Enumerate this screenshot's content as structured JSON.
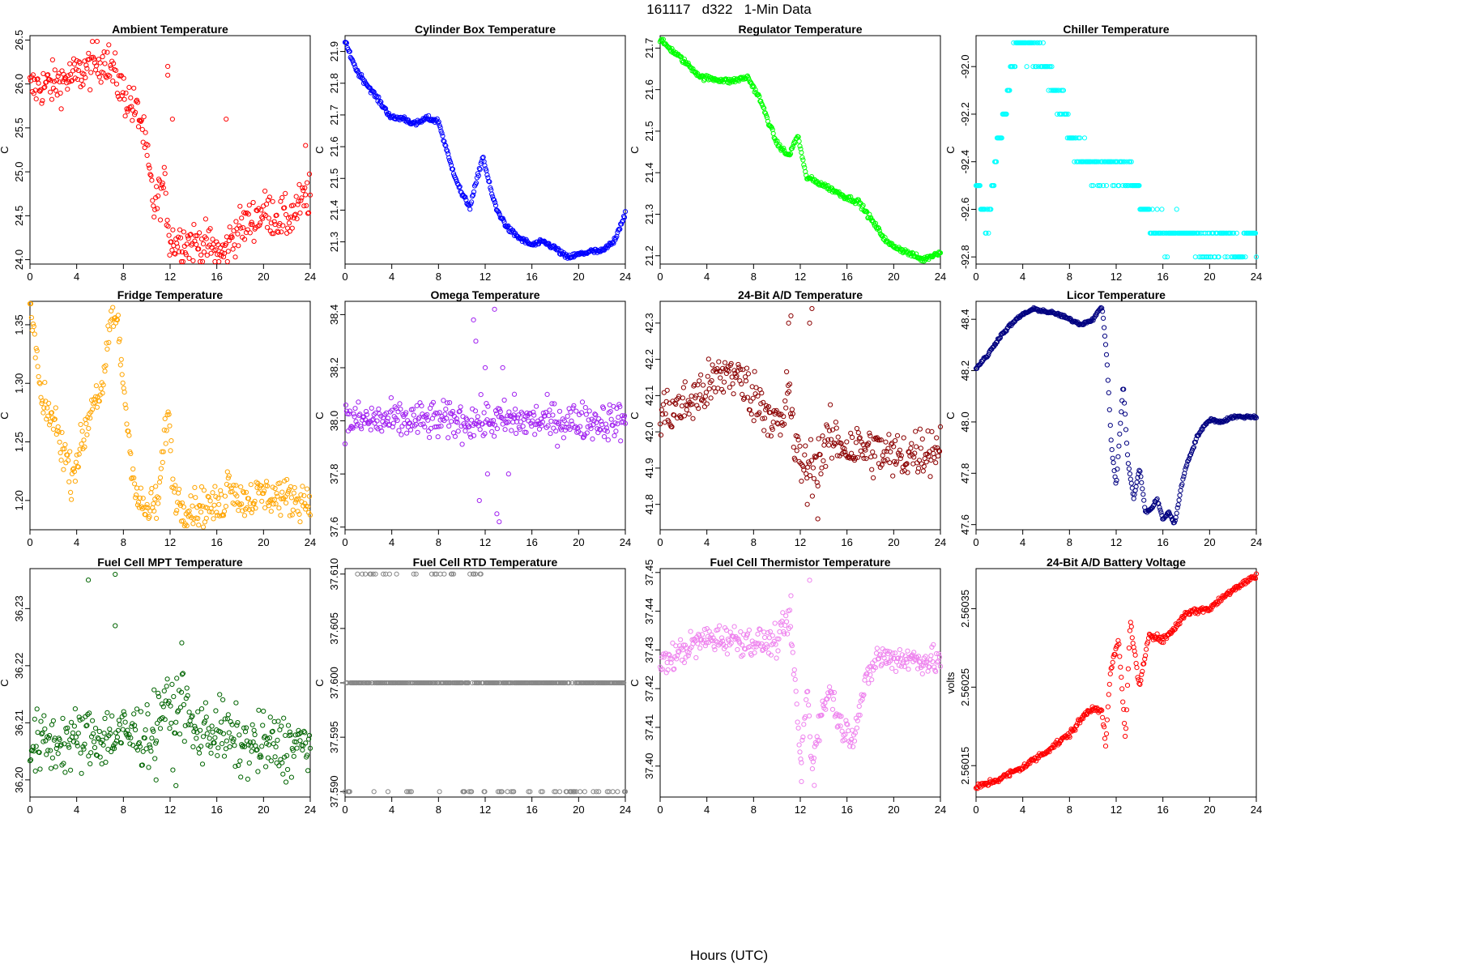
{
  "figure": {
    "title": "161117   d322   1-Min Data",
    "xlabel": "Hours (UTC)"
  },
  "chart_data": [
    {
      "type": "scatter",
      "title": "Ambient Temperature",
      "ylabel": "C",
      "color": "#ff0000",
      "xlim": [
        0,
        24
      ],
      "ylim": [
        23.95,
        26.55
      ],
      "xticks": [
        0,
        4,
        8,
        12,
        16,
        20,
        24
      ],
      "yticks": [
        "24.0",
        "24.5",
        "25.0",
        "25.5",
        "26.0",
        "26.5"
      ],
      "trend": [
        [
          0,
          25.95
        ],
        [
          2,
          26.0
        ],
        [
          4,
          26.1
        ],
        [
          6.5,
          26.3
        ],
        [
          8,
          25.9
        ],
        [
          9.5,
          25.6
        ],
        [
          10.2,
          25.0
        ],
        [
          10.6,
          24.6
        ],
        [
          11.5,
          24.85
        ],
        [
          12,
          24.22
        ],
        [
          14,
          24.2
        ],
        [
          15.5,
          24.15
        ],
        [
          16.5,
          24.05
        ],
        [
          17.5,
          24.3
        ],
        [
          20,
          24.55
        ],
        [
          22,
          24.45
        ],
        [
          24,
          24.75
        ]
      ],
      "noise": 0.12,
      "outliers": [
        [
          11.8,
          26.2
        ],
        [
          11.8,
          26.1
        ],
        [
          16.8,
          25.6
        ],
        [
          12.2,
          25.6
        ],
        [
          23.6,
          25.3
        ]
      ]
    },
    {
      "type": "scatter",
      "title": "Cylinder Box Temperature",
      "ylabel": "C",
      "color": "#0000ff",
      "xlim": [
        0,
        24
      ],
      "ylim": [
        21.23,
        21.95
      ],
      "xticks": [
        0,
        4,
        8,
        12,
        16,
        20,
        24
      ],
      "yticks": [
        "21.3",
        "21.4",
        "21.5",
        "21.6",
        "21.7",
        "21.8",
        "21.9"
      ],
      "trend": [
        [
          0,
          21.93
        ],
        [
          1,
          21.84
        ],
        [
          2,
          21.79
        ],
        [
          3,
          21.74
        ],
        [
          4,
          21.69
        ],
        [
          5,
          21.69
        ],
        [
          6,
          21.67
        ],
        [
          7,
          21.69
        ],
        [
          8,
          21.68
        ],
        [
          9,
          21.55
        ],
        [
          10,
          21.45
        ],
        [
          10.7,
          21.41
        ],
        [
          11.8,
          21.57
        ],
        [
          12.5,
          21.46
        ],
        [
          13,
          21.4
        ],
        [
          14,
          21.34
        ],
        [
          15,
          21.31
        ],
        [
          16,
          21.29
        ],
        [
          17,
          21.3
        ],
        [
          18,
          21.28
        ],
        [
          19,
          21.25
        ],
        [
          20,
          21.26
        ],
        [
          21,
          21.27
        ],
        [
          22,
          21.27
        ],
        [
          23,
          21.3
        ],
        [
          24,
          21.39
        ]
      ],
      "noise": 0.004,
      "outliers": []
    },
    {
      "type": "scatter",
      "title": "Regulator Temperature",
      "ylabel": "C",
      "color": "#00ff00",
      "xlim": [
        0,
        24
      ],
      "ylim": [
        21.18,
        21.73
      ],
      "xticks": [
        0,
        4,
        8,
        12,
        16,
        20,
        24
      ],
      "yticks": [
        "21.2",
        "21.3",
        "21.4",
        "21.5",
        "21.6",
        "21.7"
      ],
      "trend": [
        [
          0,
          21.72
        ],
        [
          2,
          21.67
        ],
        [
          3.5,
          21.63
        ],
        [
          6,
          21.62
        ],
        [
          7.5,
          21.63
        ],
        [
          8.5,
          21.58
        ],
        [
          10,
          21.47
        ],
        [
          11,
          21.44
        ],
        [
          11.8,
          21.49
        ],
        [
          12.5,
          21.39
        ],
        [
          14,
          21.37
        ],
        [
          16,
          21.34
        ],
        [
          17,
          21.33
        ],
        [
          18,
          21.29
        ],
        [
          19.5,
          21.23
        ],
        [
          21,
          21.21
        ],
        [
          22.5,
          21.19
        ],
        [
          24,
          21.21
        ]
      ],
      "noise": 0.003,
      "outliers": []
    },
    {
      "type": "scatter",
      "title": "Chiller Temperature",
      "ylabel": "C",
      "color": "#00ffff",
      "xlim": [
        0,
        24
      ],
      "ylim": [
        -92.83,
        -91.87
      ],
      "xticks": [
        0,
        4,
        8,
        12,
        16,
        20,
        24
      ],
      "yticks": [
        "-92.0",
        "-92.2",
        "-92.4",
        "-92.6",
        "-92.8"
      ],
      "quantum": 0.1,
      "trend": [
        [
          0,
          -92.5
        ],
        [
          1,
          -92.65
        ],
        [
          1.8,
          -92.35
        ],
        [
          2.8,
          -92.1
        ],
        [
          3.5,
          -91.92
        ],
        [
          5,
          -91.92
        ],
        [
          6,
          -92.0
        ],
        [
          7.5,
          -92.2
        ],
        [
          9,
          -92.4
        ],
        [
          13,
          -92.45
        ],
        [
          14.5,
          -92.6
        ],
        [
          15.5,
          -92.7
        ],
        [
          18,
          -92.7
        ],
        [
          19.5,
          -92.75
        ],
        [
          21,
          -92.72
        ],
        [
          22.5,
          -92.78
        ],
        [
          24,
          -92.7
        ]
      ],
      "noise": 0.03,
      "outliers": []
    },
    {
      "type": "scatter",
      "title": "Fridge Temperature",
      "ylabel": "C",
      "color": "#ffa500",
      "xlim": [
        0,
        24
      ],
      "ylim": [
        1.175,
        1.37
      ],
      "xticks": [
        0,
        4,
        8,
        12,
        16,
        20,
        24
      ],
      "yticks": [
        "1.20",
        "1.25",
        "1.30",
        "1.35"
      ],
      "trend": [
        [
          0,
          1.365
        ],
        [
          0.5,
          1.33
        ],
        [
          1,
          1.28
        ],
        [
          2,
          1.27
        ],
        [
          3,
          1.24
        ],
        [
          3.5,
          1.22
        ],
        [
          4.5,
          1.25
        ],
        [
          5.5,
          1.29
        ],
        [
          6.2,
          1.29
        ],
        [
          7,
          1.36
        ],
        [
          7.5,
          1.35
        ],
        [
          8.5,
          1.25
        ],
        [
          9.2,
          1.2
        ],
        [
          10,
          1.19
        ],
        [
          11,
          1.2
        ],
        [
          11.8,
          1.28
        ],
        [
          12.3,
          1.21
        ],
        [
          13,
          1.195
        ],
        [
          16.5,
          1.195
        ],
        [
          17,
          1.22
        ],
        [
          18,
          1.2
        ],
        [
          20,
          1.205
        ],
        [
          24,
          1.2
        ]
      ],
      "noise": 0.008,
      "outliers": []
    },
    {
      "type": "scatter",
      "title": "Omega Temperature",
      "ylabel": "C",
      "color": "#a020f0",
      "xlim": [
        0,
        24
      ],
      "ylim": [
        37.59,
        38.45
      ],
      "xticks": [
        0,
        4,
        8,
        12,
        16,
        20,
        24
      ],
      "yticks": [
        "37.6",
        "37.8",
        "38.0",
        "38.2",
        "38.4"
      ],
      "trend": [
        [
          0,
          38.0
        ],
        [
          10.5,
          38.0
        ],
        [
          24,
          38.0
        ]
      ],
      "noise": 0.035,
      "outliers": [
        [
          11,
          38.38
        ],
        [
          11.2,
          38.3
        ],
        [
          11.5,
          37.7
        ],
        [
          12,
          38.2
        ],
        [
          12.2,
          37.8
        ],
        [
          12.8,
          38.42
        ],
        [
          13,
          37.65
        ],
        [
          13.2,
          37.62
        ],
        [
          13.5,
          38.2
        ],
        [
          14,
          37.8
        ],
        [
          14.5,
          38.1
        ]
      ]
    },
    {
      "type": "scatter",
      "title": "24-Bit A/D Temperature",
      "ylabel": "C",
      "color": "#8b0000",
      "xlim": [
        0,
        24
      ],
      "ylim": [
        41.73,
        42.36
      ],
      "xticks": [
        0,
        4,
        8,
        12,
        16,
        20,
        24
      ],
      "yticks": [
        "41.8",
        "41.9",
        "42.0",
        "42.1",
        "42.2",
        "42.3"
      ],
      "trend": [
        [
          0,
          42.05
        ],
        [
          2,
          42.07
        ],
        [
          4,
          42.12
        ],
        [
          6,
          42.17
        ],
        [
          8,
          42.1
        ],
        [
          9.5,
          42.05
        ],
        [
          10.5,
          42.0
        ],
        [
          11,
          42.15
        ],
        [
          11.5,
          41.95
        ],
        [
          12.5,
          41.9
        ],
        [
          13.5,
          41.92
        ],
        [
          14.5,
          41.98
        ],
        [
          16,
          41.96
        ],
        [
          18,
          41.95
        ],
        [
          20,
          41.93
        ],
        [
          24,
          41.96
        ]
      ],
      "noise": 0.035,
      "outliers": [
        [
          11,
          42.3
        ],
        [
          11.2,
          42.32
        ],
        [
          12.8,
          42.3
        ],
        [
          13,
          42.34
        ],
        [
          13.5,
          41.76
        ],
        [
          12.6,
          41.8
        ]
      ]
    },
    {
      "type": "scatter",
      "title": "Licor Temperature",
      "ylabel": "C",
      "color": "#000080",
      "xlim": [
        0,
        24
      ],
      "ylim": [
        47.58,
        48.47
      ],
      "xticks": [
        0,
        4,
        8,
        12,
        16,
        20,
        24
      ],
      "yticks": [
        "47.6",
        "47.8",
        "48.0",
        "48.2",
        "48.4"
      ],
      "trend": [
        [
          0,
          48.21
        ],
        [
          1,
          48.26
        ],
        [
          2,
          48.33
        ],
        [
          3,
          48.38
        ],
        [
          4,
          48.42
        ],
        [
          5,
          48.44
        ],
        [
          6,
          48.43
        ],
        [
          7,
          48.42
        ],
        [
          8,
          48.4
        ],
        [
          9,
          48.38
        ],
        [
          10,
          48.4
        ],
        [
          10.8,
          48.45
        ],
        [
          11.2,
          48.25
        ],
        [
          11.6,
          47.9
        ],
        [
          12,
          47.75
        ],
        [
          12.6,
          48.15
        ],
        [
          13,
          47.85
        ],
        [
          13.5,
          47.7
        ],
        [
          14,
          47.82
        ],
        [
          14.5,
          47.65
        ],
        [
          15,
          47.66
        ],
        [
          15.5,
          47.7
        ],
        [
          16,
          47.62
        ],
        [
          16.5,
          47.65
        ],
        [
          17,
          47.6
        ],
        [
          17.5,
          47.73
        ],
        [
          18,
          47.83
        ],
        [
          19,
          47.95
        ],
        [
          20,
          48.01
        ],
        [
          21,
          48.0
        ],
        [
          22,
          48.02
        ],
        [
          24,
          48.02
        ]
      ],
      "noise": 0.003,
      "outliers": []
    },
    {
      "type": "scatter",
      "title": "Fuel Cell MPT Temperature",
      "ylabel": "C",
      "color": "#006400",
      "xlim": [
        0,
        24
      ],
      "ylim": [
        36.197,
        36.237
      ],
      "xticks": [
        0,
        4,
        8,
        12,
        16,
        20,
        24
      ],
      "yticks": [
        "36.20",
        "36.21",
        "36.22",
        "36.23"
      ],
      "trend": [
        [
          0,
          36.206
        ],
        [
          4,
          36.207
        ],
        [
          8,
          36.208
        ],
        [
          10.5,
          36.208
        ],
        [
          11.5,
          36.214
        ],
        [
          12.2,
          36.21
        ],
        [
          13,
          36.215
        ],
        [
          14,
          36.208
        ],
        [
          16,
          36.209
        ],
        [
          18,
          36.206
        ],
        [
          24,
          36.206
        ]
      ],
      "noise": 0.0028,
      "outliers": [
        [
          5,
          36.235
        ],
        [
          7.3,
          36.236
        ],
        [
          7.3,
          36.227
        ],
        [
          13,
          36.224
        ],
        [
          12.5,
          36.199
        ],
        [
          10.8,
          36.2
        ]
      ]
    },
    {
      "type": "scatter",
      "title": "Fuel Cell RTD Temperature",
      "ylabel": "C",
      "color": "#888888",
      "xlim": [
        0,
        24
      ],
      "ylim": [
        37.5895,
        37.6105
      ],
      "xticks": [
        0,
        4,
        8,
        12,
        16,
        20,
        24
      ],
      "yticks": [
        "37.590",
        "37.595",
        "37.600",
        "37.605",
        "37.610"
      ],
      "levels": [
        37.59,
        37.6,
        37.61
      ],
      "trend": [
        [
          0,
          37.6
        ],
        [
          24,
          37.6
        ]
      ],
      "noise": 0,
      "outliers": []
    },
    {
      "type": "scatter",
      "title": "Fuel Cell Thermistor Temperature",
      "ylabel": "C",
      "color": "#ee82ee",
      "xlim": [
        0,
        24
      ],
      "ylim": [
        37.392,
        37.451
      ],
      "xticks": [
        0,
        4,
        8,
        12,
        16,
        20,
        24
      ],
      "yticks": [
        "37.40",
        "37.41",
        "37.42",
        "37.43",
        "37.44",
        "37.45"
      ],
      "trend": [
        [
          0,
          37.426
        ],
        [
          2,
          37.43
        ],
        [
          4,
          37.433
        ],
        [
          6,
          37.433
        ],
        [
          8,
          37.432
        ],
        [
          10,
          37.432
        ],
        [
          11,
          37.438
        ],
        [
          11.5,
          37.425
        ],
        [
          12,
          37.4
        ],
        [
          12.6,
          37.42
        ],
        [
          13,
          37.4
        ],
        [
          13.5,
          37.41
        ],
        [
          14.5,
          37.42
        ],
        [
          15.5,
          37.41
        ],
        [
          16.5,
          37.408
        ],
        [
          17.5,
          37.42
        ],
        [
          18.5,
          37.428
        ],
        [
          20,
          37.428
        ],
        [
          24,
          37.427
        ]
      ],
      "noise": 0.0018,
      "outliers": [
        [
          12.8,
          37.448
        ],
        [
          11.2,
          37.444
        ],
        [
          12.1,
          37.396
        ],
        [
          13.2,
          37.395
        ]
      ]
    },
    {
      "type": "scatter",
      "title": "24-Bit A/D Battery Voltage",
      "ylabel": "volts",
      "color": "#ff0000",
      "xlim": [
        0,
        24
      ],
      "ylim": [
        2.56011,
        2.560401
      ],
      "xticks": [
        0,
        4,
        8,
        12,
        16,
        20,
        24
      ],
      "yticks": [
        "2.56015",
        "2.56025",
        "2.56035"
      ],
      "trend": [
        [
          0,
          2.560122
        ],
        [
          2,
          2.560133
        ],
        [
          4,
          2.560148
        ],
        [
          6,
          2.560168
        ],
        [
          8,
          2.56019
        ],
        [
          9.5,
          2.560218
        ],
        [
          10.2,
          2.560225
        ],
        [
          10.8,
          2.560218
        ],
        [
          11.1,
          2.560175
        ],
        [
          11.5,
          2.56027
        ],
        [
          12.2,
          2.56031
        ],
        [
          12.8,
          2.560185
        ],
        [
          13.2,
          2.560335
        ],
        [
          14,
          2.560248
        ],
        [
          14.8,
          2.560318
        ],
        [
          16,
          2.56031
        ],
        [
          17,
          2.560325
        ],
        [
          18,
          2.560345
        ],
        [
          20,
          2.56035
        ],
        [
          22,
          2.560375
        ],
        [
          24,
          2.560392
        ]
      ],
      "noise": 2e-06,
      "outliers": []
    }
  ]
}
